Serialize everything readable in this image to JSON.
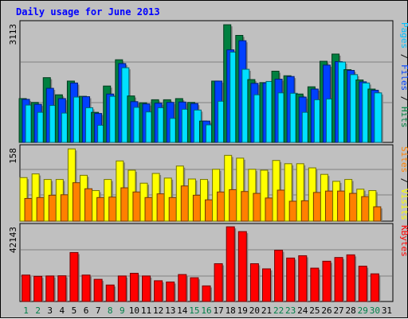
{
  "title": "Daily usage for June 2013",
  "chart_data": {
    "type": "bar",
    "title": "Daily usage for June 2013",
    "days": [
      "1",
      "2",
      "3",
      "4",
      "5",
      "6",
      "7",
      "8",
      "9",
      "10",
      "11",
      "12",
      "13",
      "14",
      "15",
      "16",
      "17",
      "18",
      "19",
      "20",
      "21",
      "22",
      "23",
      "24",
      "25",
      "26",
      "27",
      "28",
      "29",
      "30",
      "31"
    ],
    "weekend_days": [
      "1",
      "2",
      "8",
      "9",
      "15",
      "16",
      "22",
      "23",
      "29",
      "30"
    ],
    "panels": [
      {
        "name": "hits-files-pages",
        "max_label": "3113",
        "max": 3113,
        "right_label": [
          {
            "text": "Pages",
            "color": "#00c0ff"
          },
          {
            "text": "Files",
            "color": "#0040ff"
          },
          {
            "text": "Hits",
            "color": "#008040"
          }
        ],
        "series": [
          {
            "name": "Hits",
            "color": "#008040",
            "values": [
              1150,
              1050,
              1700,
              1250,
              1610,
              1210,
              790,
              1480,
              2170,
              1220,
              1040,
              1120,
              1120,
              1150,
              1050,
              560,
              1610,
              3090,
              2810,
              1650,
              1570,
              1870,
              1750,
              1270,
              1460,
              2130,
              2320,
              1910,
              1640,
              1400,
              0
            ]
          },
          {
            "name": "Files",
            "color": "#0040ff",
            "values": [
              1130,
              1000,
              1420,
              1150,
              1560,
              1200,
              760,
              1270,
              2070,
              1070,
              1010,
              1030,
              1050,
              1060,
              1020,
              560,
              1610,
              2430,
              2670,
              1550,
              1560,
              1660,
              1730,
              1190,
              1400,
              2030,
              2120,
              1890,
              1590,
              1370,
              0
            ]
          },
          {
            "name": "Pages",
            "color": "#00e0ff",
            "values": [
              980,
              790,
              970,
              770,
              1190,
              910,
              450,
              1210,
              1960,
              920,
              800,
              910,
              630,
              870,
              850,
              460,
              1080,
              2370,
              1920,
              1250,
              1600,
              1300,
              1290,
              790,
              1120,
              1140,
              2110,
              1780,
              1560,
              1300,
              0
            ]
          }
        ]
      },
      {
        "name": "visits-sites",
        "max_label": "158",
        "max": 158,
        "right_label": [
          {
            "text": "Sites",
            "color": "#ff8000"
          },
          {
            "text": "Visits",
            "color": "#ffff00"
          }
        ],
        "series": [
          {
            "name": "Visits",
            "color": "#ffff00",
            "values": [
              94,
              102,
              90,
              90,
              156,
              99,
              66,
              90,
              130,
              110,
              82,
              103,
              93,
              119,
              91,
              90,
              112,
              142,
              136,
              112,
              110,
              131,
              124,
              124,
              115,
              101,
              86,
              90,
              69,
              66,
              0
            ]
          },
          {
            "name": "Sites",
            "color": "#ff8000",
            "values": [
              49,
              51,
              56,
              57,
              83,
              70,
              51,
              52,
              72,
              63,
              51,
              59,
              51,
              76,
              56,
              46,
              63,
              68,
              64,
              60,
              50,
              67,
              43,
              44,
              62,
              65,
              65,
              60,
              53,
              31,
              0
            ]
          }
        ]
      },
      {
        "name": "kbytes",
        "max_label": "42143",
        "max": 42143,
        "right_label": [
          {
            "text": "KBytes",
            "color": "#ff0000"
          }
        ],
        "series": [
          {
            "name": "KBytes",
            "color": "#ff0000",
            "values": [
              14900,
              14200,
              14400,
              14500,
              27600,
              14900,
              12500,
              9300,
              14400,
              15900,
              14400,
              11700,
              11000,
              15200,
              13400,
              8800,
              21300,
              42100,
              39400,
              21300,
              18400,
              28900,
              24500,
              25800,
              18800,
              22700,
              24800,
              26300,
              19900,
              15600,
              0
            ]
          }
        ]
      }
    ]
  }
}
